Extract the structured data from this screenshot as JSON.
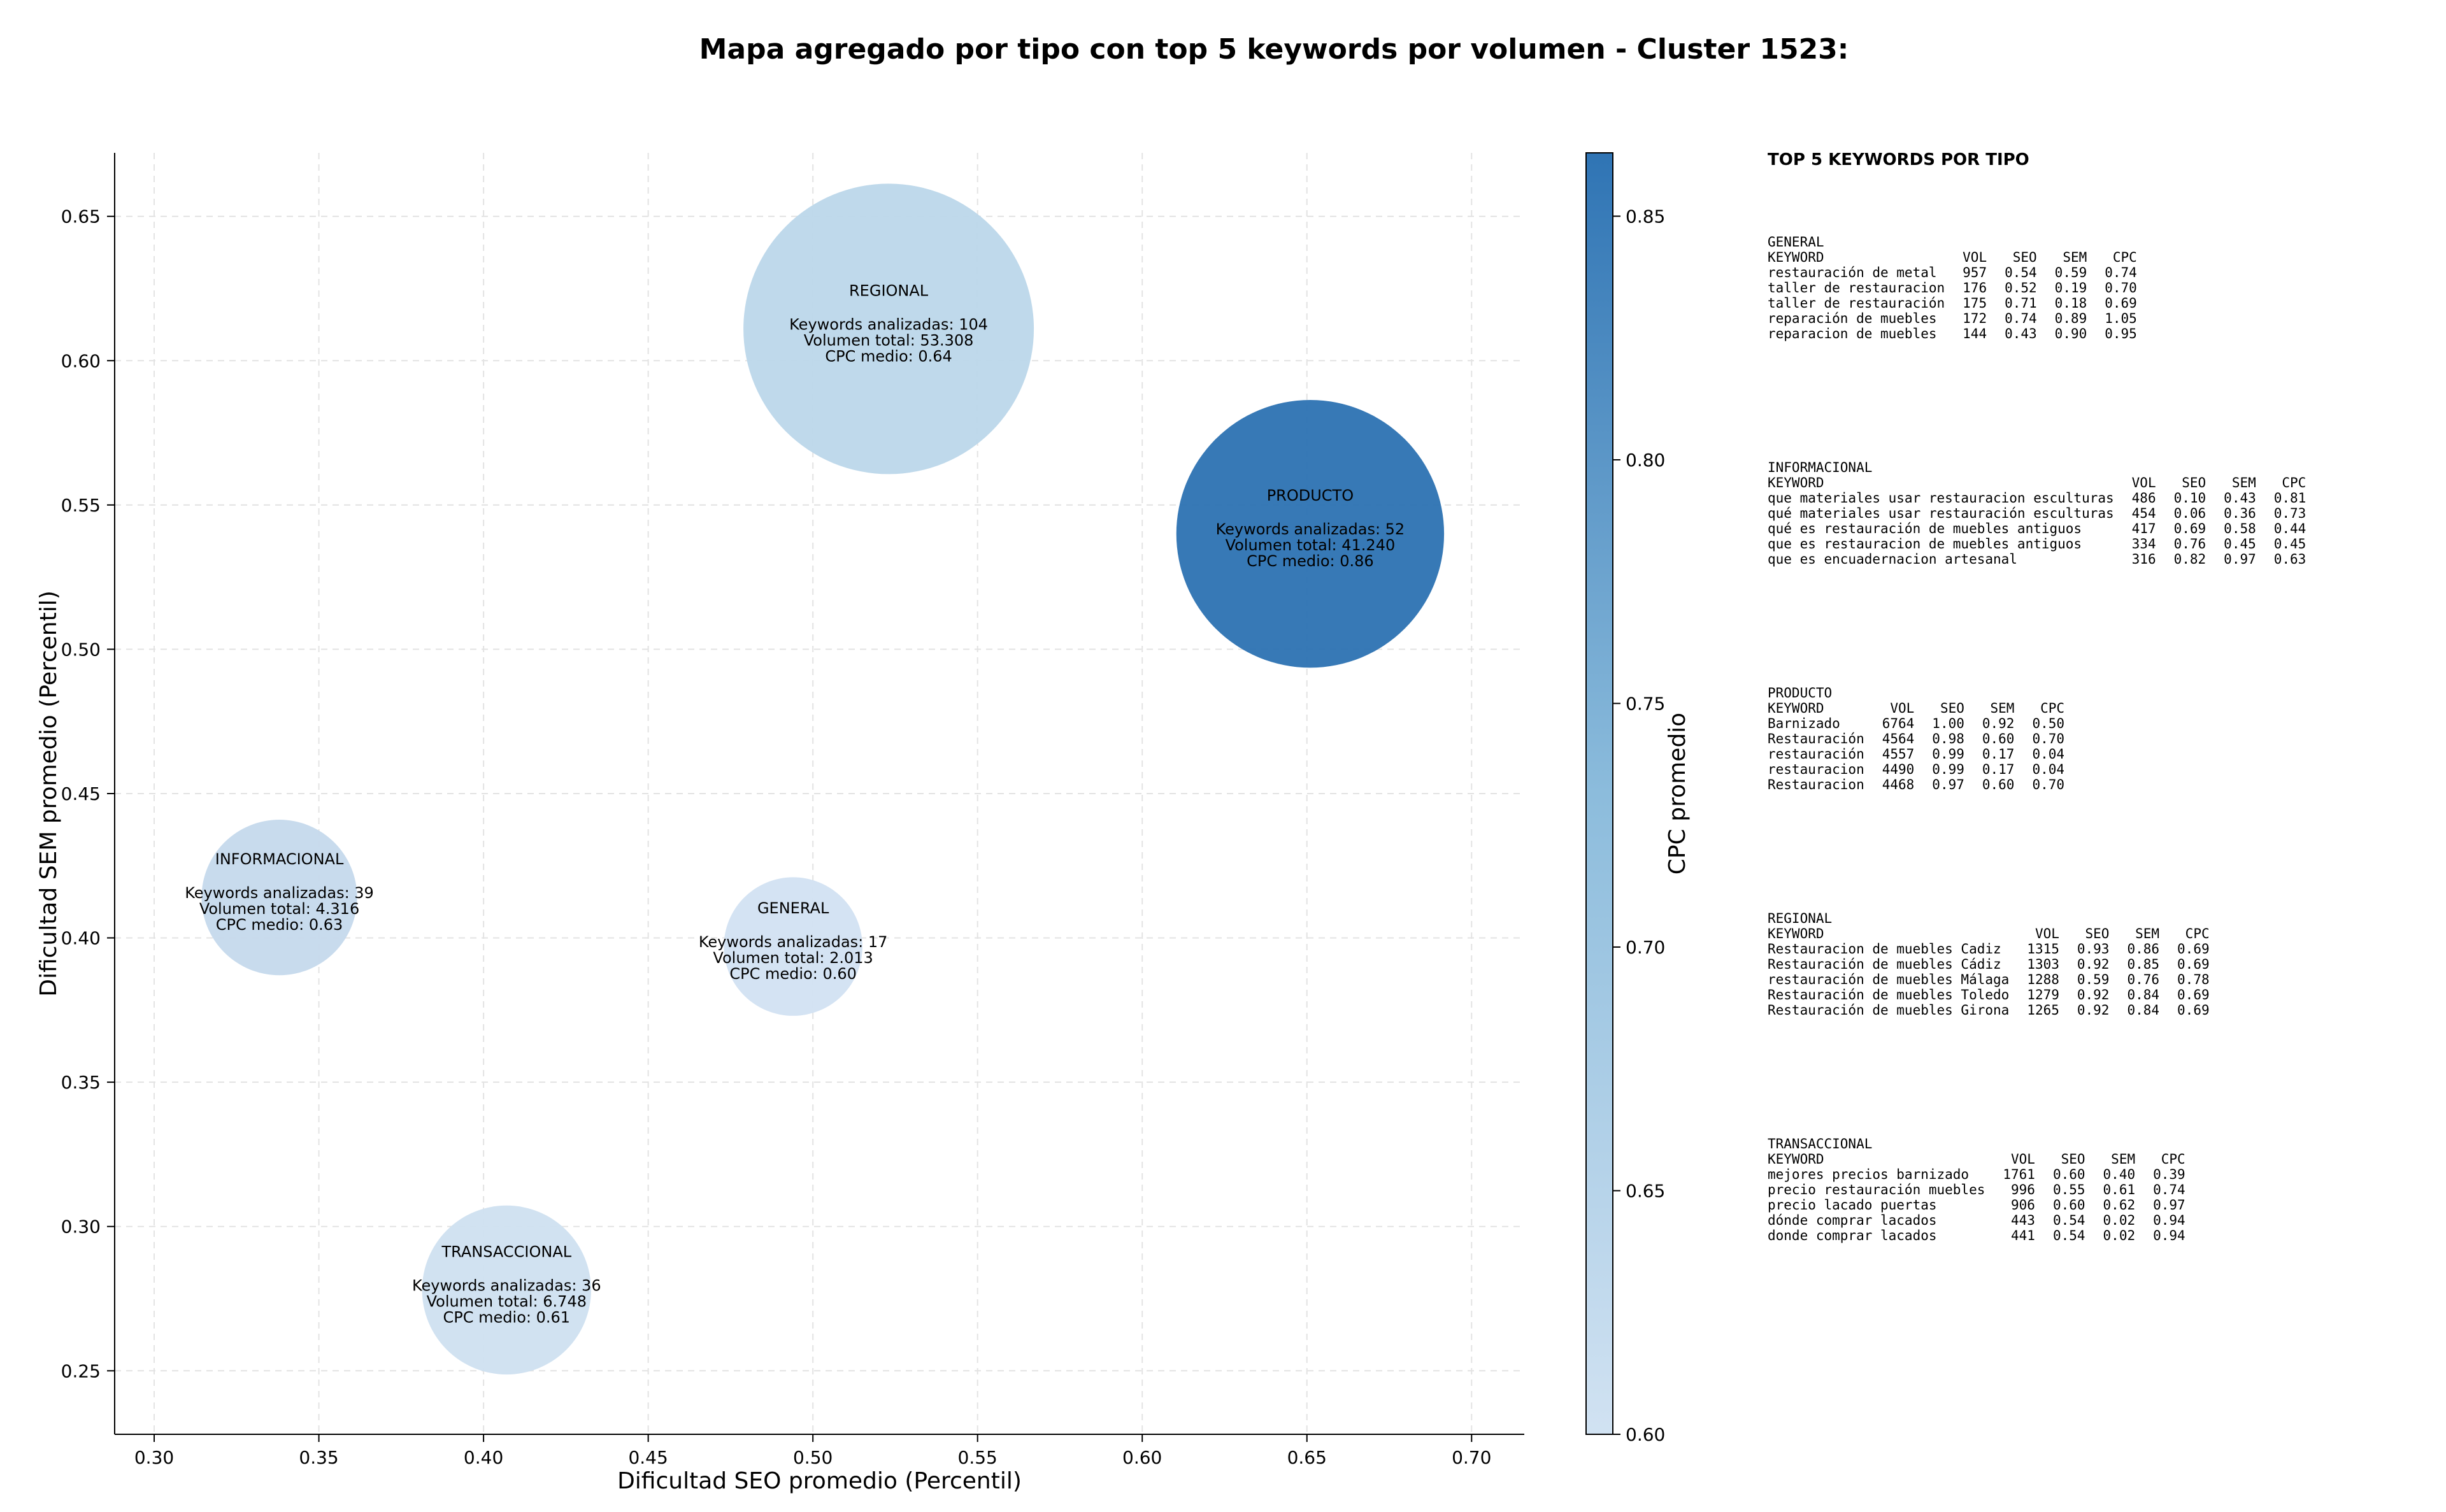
{
  "chart_data": {
    "type": "scatter",
    "title": "Mapa agregado por tipo con top 5 keywords por volumen - Cluster 1523:",
    "xlabel": "Dificultad SEO promedio (Percentil)",
    "ylabel": "Dificultad SEM promedio (Percentil)",
    "xlim": [
      0.288,
      0.716
    ],
    "ylim": [
      0.228,
      0.672
    ],
    "xticks": [
      "0.30",
      "0.35",
      "0.40",
      "0.45",
      "0.50",
      "0.55",
      "0.60",
      "0.65",
      "0.70"
    ],
    "yticks": [
      "0.25",
      "0.30",
      "0.35",
      "0.40",
      "0.45",
      "0.50",
      "0.55",
      "0.60",
      "0.65"
    ],
    "grid": true,
    "colorbar": {
      "label": "CPC promedio",
      "range": [
        0.6,
        0.863
      ],
      "ticks": [
        "0.60",
        "0.65",
        "0.70",
        "0.75",
        "0.80",
        "0.85"
      ],
      "color_low": "#d1e2f2",
      "color_high": "#2f74b4"
    },
    "points": [
      {
        "name": "REGIONAL",
        "x": 0.523,
        "y": 0.611,
        "keywords": 104,
        "volume": 53308,
        "cpc": 0.64,
        "lines": [
          "Keywords analizadas: 104",
          "Volumen total: 53.308",
          "CPC medio: 0.64"
        ],
        "color": "#bcd7ea"
      },
      {
        "name": "PRODUCTO",
        "x": 0.651,
        "y": 0.54,
        "keywords": 52,
        "volume": 41240,
        "cpc": 0.86,
        "lines": [
          "Keywords analizadas: 52",
          "Volumen total: 41.240",
          "CPC medio: 0.86"
        ],
        "color": "#2c72b2"
      },
      {
        "name": "INFORMACIONAL",
        "x": 0.338,
        "y": 0.414,
        "keywords": 39,
        "volume": 4316,
        "cpc": 0.63,
        "lines": [
          "Keywords analizadas: 39",
          "Volumen total: 4.316",
          "CPC medio: 0.63"
        ],
        "color": "#c5d9ec"
      },
      {
        "name": "GENERAL",
        "x": 0.494,
        "y": 0.397,
        "keywords": 17,
        "volume": 2013,
        "cpc": 0.6,
        "lines": [
          "Keywords analizadas: 17",
          "Volumen total: 2.013",
          "CPC medio: 0.60"
        ],
        "color": "#d2e2f2"
      },
      {
        "name": "TRANSACCIONAL",
        "x": 0.407,
        "y": 0.278,
        "keywords": 36,
        "volume": 6748,
        "cpc": 0.61,
        "lines": [
          "Keywords analizadas: 36",
          "Volumen total: 6.748",
          "CPC medio: 0.61"
        ],
        "color": "#cfe0f0"
      }
    ]
  },
  "side_panel": {
    "title": "TOP 5 KEYWORDS POR TIPO",
    "headers": [
      "KEYWORD",
      "VOL",
      "SEO",
      "SEM",
      "CPC"
    ],
    "groups": [
      {
        "type": "GENERAL",
        "rows": [
          [
            "restauración de metal",
            "957",
            "0.54",
            "0.59",
            "0.74"
          ],
          [
            "taller de restauracion",
            "176",
            "0.52",
            "0.19",
            "0.70"
          ],
          [
            "taller de restauración",
            "175",
            "0.71",
            "0.18",
            "0.69"
          ],
          [
            "reparación de muebles",
            "172",
            "0.74",
            "0.89",
            "1.05"
          ],
          [
            "reparacion de muebles",
            "144",
            "0.43",
            "0.90",
            "0.95"
          ]
        ]
      },
      {
        "type": "INFORMACIONAL",
        "rows": [
          [
            "que materiales usar restauracion esculturas",
            "486",
            "0.10",
            "0.43",
            "0.81"
          ],
          [
            "qué materiales usar restauración esculturas",
            "454",
            "0.06",
            "0.36",
            "0.73"
          ],
          [
            "qué es restauración de muebles antiguos",
            "417",
            "0.69",
            "0.58",
            "0.44"
          ],
          [
            "que es restauracion de muebles antiguos",
            "334",
            "0.76",
            "0.45",
            "0.45"
          ],
          [
            "que es encuadernacion artesanal",
            "316",
            "0.82",
            "0.97",
            "0.63"
          ]
        ]
      },
      {
        "type": "PRODUCTO",
        "rows": [
          [
            "Barnizado",
            "6764",
            "1.00",
            "0.92",
            "0.50"
          ],
          [
            "Restauración",
            "4564",
            "0.98",
            "0.60",
            "0.70"
          ],
          [
            "restauración",
            "4557",
            "0.99",
            "0.17",
            "0.04"
          ],
          [
            "restauracion",
            "4490",
            "0.99",
            "0.17",
            "0.04"
          ],
          [
            "Restauracion",
            "4468",
            "0.97",
            "0.60",
            "0.70"
          ]
        ]
      },
      {
        "type": "REGIONAL",
        "rows": [
          [
            "Restauracion de muebles Cadiz",
            "1315",
            "0.93",
            "0.86",
            "0.69"
          ],
          [
            "Restauración de muebles Cádiz",
            "1303",
            "0.92",
            "0.85",
            "0.69"
          ],
          [
            "restauración de muebles Málaga",
            "1288",
            "0.59",
            "0.76",
            "0.78"
          ],
          [
            "Restauración de muebles Toledo",
            "1279",
            "0.92",
            "0.84",
            "0.69"
          ],
          [
            "Restauración de muebles Girona",
            "1265",
            "0.92",
            "0.84",
            "0.69"
          ]
        ]
      },
      {
        "type": "TRANSACCIONAL",
        "rows": [
          [
            "mejores precios barnizado",
            "1761",
            "0.60",
            "0.40",
            "0.39"
          ],
          [
            "precio restauración muebles",
            "996",
            "0.55",
            "0.61",
            "0.74"
          ],
          [
            "precio lacado puertas",
            "906",
            "0.60",
            "0.62",
            "0.97"
          ],
          [
            "dónde comprar lacados",
            "443",
            "0.54",
            "0.02",
            "0.94"
          ],
          [
            "donde comprar lacados",
            "441",
            "0.54",
            "0.02",
            "0.94"
          ]
        ]
      }
    ]
  }
}
